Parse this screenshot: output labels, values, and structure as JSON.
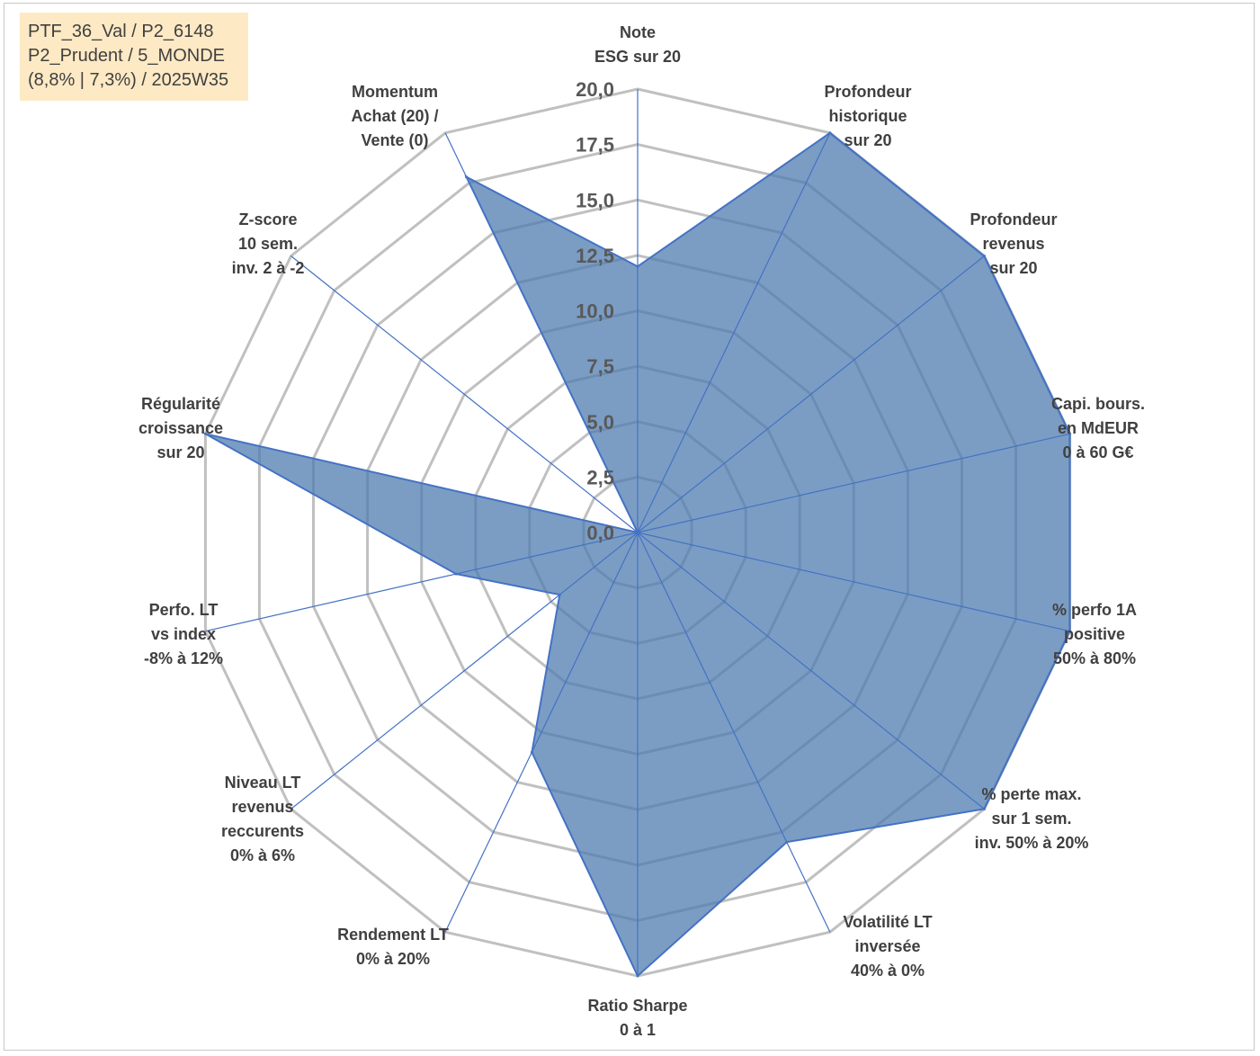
{
  "info": {
    "line1": "PTF_36_Val / P2_6148",
    "line2": "P2_Prudent / 5_MONDE",
    "line3": "(8,8% | 7,3%) / 2025W35"
  },
  "chart_data": {
    "type": "radar",
    "rmin": 0,
    "rmax": 20,
    "ticks": [
      "0,0",
      "2,5",
      "5,0",
      "7,5",
      "10,0",
      "12,5",
      "15,0",
      "17,5",
      "20,0"
    ],
    "axes": [
      [
        "Note",
        "ESG sur 20"
      ],
      [
        "Profondeur",
        "historique",
        "sur 20"
      ],
      [
        "Profondeur",
        "revenus",
        "sur 20"
      ],
      [
        "Capi. bours.",
        "en MdEUR",
        "0 à 60 G€"
      ],
      [
        "% perfo 1A",
        "positive",
        "50% à 80%"
      ],
      [
        "% perte max.",
        "sur 1 sem.",
        "inv. 50% à 20%"
      ],
      [
        "Volatilité LT",
        "inversée",
        "40% à 0%"
      ],
      [
        "Ratio Sharpe",
        "0 à 1"
      ],
      [
        "Rendement LT",
        "0% à 20%"
      ],
      [
        "Niveau LT",
        "revenus",
        "reccurents",
        "0% à 6%"
      ],
      [
        "Perfo. LT",
        "vs index",
        "-8% à 12%"
      ],
      [
        "Régularité",
        "croissance",
        "sur 20"
      ],
      [
        "Z-score",
        "10 sem.",
        "inv. 2 à -2"
      ],
      [
        "Momentum",
        "Achat (20) /",
        "Vente (0)"
      ]
    ],
    "series": [
      {
        "values": [
          12.0,
          20.0,
          20.0,
          20.0,
          20.0,
          20.0,
          15.5,
          20.0,
          11.0,
          4.5,
          8.4,
          20.0,
          0.0,
          17.8
        ]
      }
    ],
    "colors": {
      "fill": "#4f7cb0",
      "fill_opacity": 0.75,
      "stroke": "#4472c4",
      "grid": "#c0c0c0",
      "axis_line": "#4472c4"
    }
  }
}
